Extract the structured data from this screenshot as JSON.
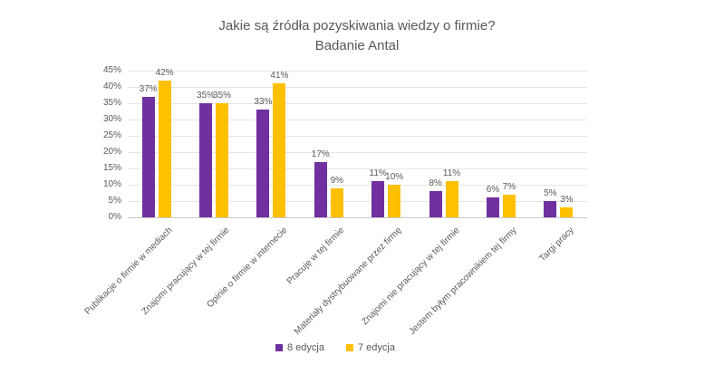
{
  "chart_data": {
    "type": "bar",
    "title": "Jakie są źródła pozyskiwania wiedzy o firmie?",
    "subtitle": "Badanie Antal",
    "categories": [
      "Publikacje o firmie w mediach",
      "Znajomi pracujący w tej firmie",
      "Opinie o firmie w internecie",
      "Pracuję w tej firmie",
      "Materiały dystrybuowane przez firmę",
      "Znajomi nie pracujący w tej firmie",
      "Jestem byłym pracownikiem tej firmy",
      "Targi pracy"
    ],
    "series": [
      {
        "name": "8 edycja",
        "color": "#7030A0",
        "values": [
          37,
          35,
          33,
          17,
          11,
          8,
          6,
          5
        ]
      },
      {
        "name": "7 edycja",
        "color": "#FFC000",
        "values": [
          42,
          35,
          41,
          9,
          10,
          11,
          7,
          3
        ]
      }
    ],
    "xlabel": "",
    "ylabel": "",
    "ylim": [
      0,
      45
    ],
    "ytick_step": 5,
    "value_suffix": "%",
    "grid": true,
    "legend_position": "bottom",
    "colors": {
      "text": "#595959",
      "gridline": "#E6E6E6",
      "axis_line": "#C9C9C9",
      "background": "#FFFFFF"
    }
  }
}
